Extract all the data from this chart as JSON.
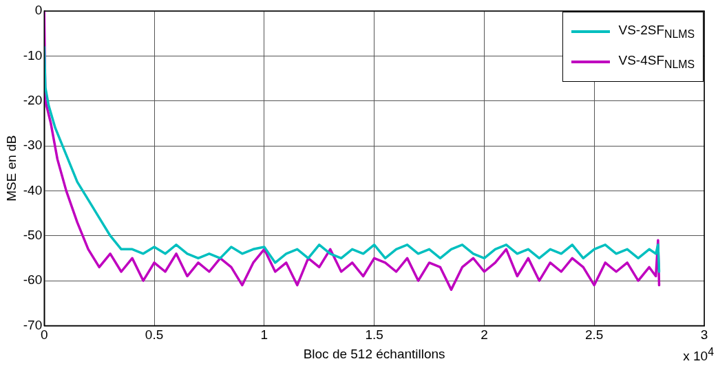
{
  "chart_data": {
    "type": "line",
    "xlabel": "Bloc de 512 échantillons",
    "ylabel": "MSE en dB",
    "annotations": [
      "x 10$^{4}$"
    ],
    "xlim": [
      0,
      3
    ],
    "xticks": [
      0,
      0.5,
      1,
      1.5,
      2,
      2.5,
      3
    ],
    "ylim": [
      -70,
      0
    ],
    "yticks": [
      -70,
      -60,
      -50,
      -40,
      -30,
      -20,
      -10,
      0
    ],
    "grid": true,
    "legend": "top right",
    "marker": "none",
    "line_style": "solid",
    "series": [
      {
        "name": "VS-2SF$_{NLMS}$",
        "color": "#00bfbf",
        "x": [
          0,
          0.005,
          0.02,
          0.05,
          0.1,
          0.15,
          0.2,
          0.25,
          0.3,
          0.35,
          0.4,
          0.45,
          0.5,
          0.55,
          0.6,
          0.65,
          0.7,
          0.75,
          0.8,
          0.85,
          0.9,
          0.95,
          1.0,
          1.05,
          1.1,
          1.15,
          1.2,
          1.25,
          1.3,
          1.35,
          1.4,
          1.45,
          1.5,
          1.55,
          1.6,
          1.65,
          1.7,
          1.75,
          1.8,
          1.85,
          1.9,
          1.95,
          2.0,
          2.05,
          2.1,
          2.15,
          2.2,
          2.25,
          2.3,
          2.35,
          2.4,
          2.45,
          2.5,
          2.55,
          2.6,
          2.65,
          2.7,
          2.75,
          2.78,
          2.79,
          2.795
        ],
        "values": [
          -8,
          -17,
          -21,
          -26,
          -32,
          -38,
          -42,
          -46,
          -50,
          -53,
          -53,
          -54,
          -52.5,
          -54,
          -52,
          -54,
          -55,
          -54,
          -55,
          -52.5,
          -54,
          -53,
          -52.5,
          -56,
          -54,
          -53,
          -55,
          -52,
          -54,
          -55,
          -53,
          -54,
          -52,
          -55,
          -53,
          -52,
          -54,
          -53,
          -55,
          -53,
          -52,
          -54,
          -55,
          -53,
          -52,
          -54,
          -53,
          -55,
          -53,
          -54,
          -52,
          -55,
          -53,
          -52,
          -54,
          -53,
          -55,
          -53,
          -54,
          -52,
          -58
        ]
      },
      {
        "name": "VS-4SF$_{NLMS}$",
        "color": "#bf00bf",
        "x": [
          0,
          0.005,
          0.03,
          0.06,
          0.1,
          0.15,
          0.2,
          0.25,
          0.3,
          0.35,
          0.4,
          0.45,
          0.5,
          0.55,
          0.6,
          0.65,
          0.7,
          0.75,
          0.8,
          0.85,
          0.9,
          0.95,
          1.0,
          1.05,
          1.1,
          1.15,
          1.2,
          1.25,
          1.3,
          1.35,
          1.4,
          1.45,
          1.5,
          1.55,
          1.6,
          1.65,
          1.7,
          1.75,
          1.8,
          1.85,
          1.9,
          1.95,
          2.0,
          2.05,
          2.1,
          2.15,
          2.2,
          2.25,
          2.3,
          2.35,
          2.4,
          2.45,
          2.5,
          2.55,
          2.6,
          2.65,
          2.7,
          2.75,
          2.78,
          2.79,
          2.795
        ],
        "values": [
          0,
          -20,
          -25,
          -33,
          -40,
          -47,
          -53,
          -57,
          -54,
          -58,
          -55,
          -60,
          -56,
          -58,
          -54,
          -59,
          -56,
          -58,
          -55,
          -57,
          -61,
          -56,
          -53,
          -58,
          -56,
          -61,
          -55,
          -57,
          -53,
          -58,
          -56,
          -59,
          -55,
          -56,
          -58,
          -55,
          -60,
          -56,
          -57,
          -62,
          -57,
          -55,
          -58,
          -56,
          -53,
          -59,
          -55,
          -60,
          -56,
          -58,
          -55,
          -57,
          -61,
          -56,
          -58,
          -56,
          -60,
          -57,
          -59,
          -51,
          -61
        ]
      }
    ]
  }
}
